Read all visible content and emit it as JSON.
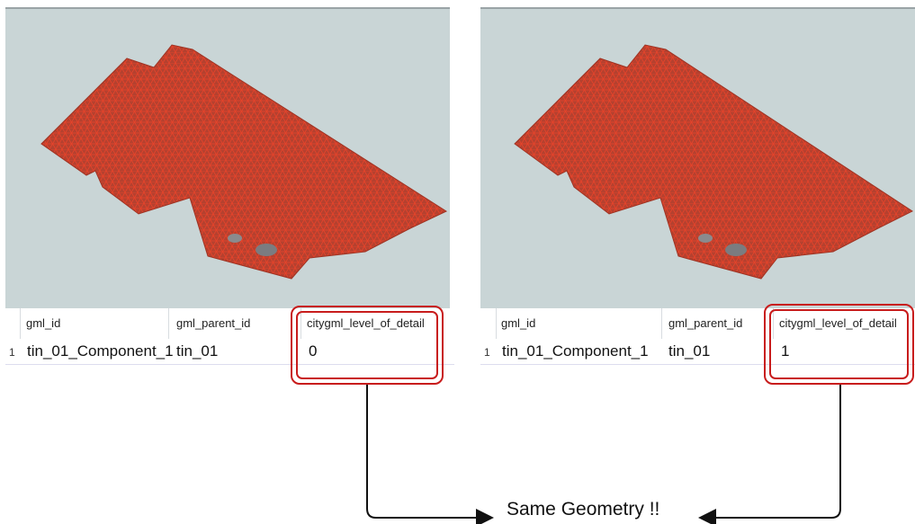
{
  "panels": [
    {
      "columns": [
        "gml_id",
        "gml_parent_id",
        "citygml_level_of_detail"
      ],
      "rows": [
        {
          "num": "1",
          "gml_id": "tin_01_Component_1",
          "gml_parent_id": "tin_01",
          "lod": "0"
        }
      ]
    },
    {
      "columns": [
        "gml_id",
        "gml_parent_id",
        "citygml_level_of_detail"
      ],
      "rows": [
        {
          "num": "1",
          "gml_id": "tin_01_Component_1",
          "gml_parent_id": "tin_01",
          "lod": "1"
        }
      ]
    }
  ],
  "caption": "Same Geometry !!",
  "colors": {
    "viewport_bg": "#c9d5d6",
    "mesh_fill": "#b8402e",
    "mesh_line": "#e03a24",
    "highlight": "#c81c1c"
  }
}
